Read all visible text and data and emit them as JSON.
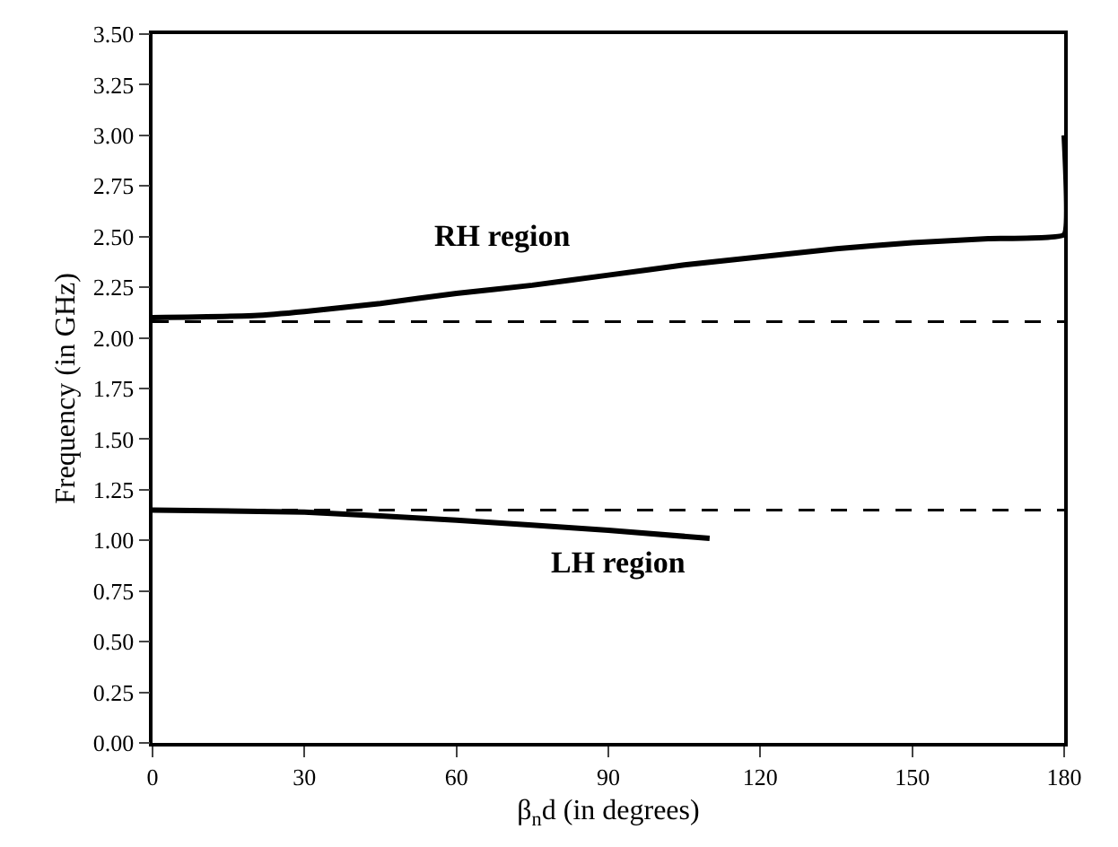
{
  "chart_data": {
    "type": "line",
    "xlabel": "β$_{n}$d (in degrees)",
    "ylabel": "Frequency (in GHz)",
    "xlim": [
      0,
      180
    ],
    "xticks": [
      0,
      30,
      60,
      90,
      120,
      150,
      180
    ],
    "ylim": [
      0,
      3.5
    ],
    "yticks": [
      {
        "value": 0,
        "label": "0.00"
      },
      {
        "value": 0.25,
        "label": "0.25"
      },
      {
        "value": 0.5,
        "label": "0.50"
      },
      {
        "value": 0.75,
        "label": "0.75"
      },
      {
        "value": 1,
        "label": "1.00"
      },
      {
        "value": 1.25,
        "label": "1.25"
      },
      {
        "value": 1.5,
        "label": "1.50"
      },
      {
        "value": 1.75,
        "label": "1.75"
      },
      {
        "value": 2,
        "label": "2.00"
      },
      {
        "value": 2.25,
        "label": "2.25"
      },
      {
        "value": 2.5,
        "label": "2.50"
      },
      {
        "value": 2.75,
        "label": "2.75"
      },
      {
        "value": 3,
        "label": "3.00"
      },
      {
        "value": 3.25,
        "label": "3.25"
      },
      {
        "value": 3.5,
        "label": "3.50"
      }
    ],
    "series": [
      {
        "color": "#000000",
        "x": [
          0,
          20,
          30,
          45,
          60,
          75,
          90,
          105,
          120,
          135,
          150,
          165,
          180,
          180
        ],
        "values": [
          2.1,
          2.11,
          2.13,
          2.17,
          2.22,
          2.26,
          2.31,
          2.36,
          2.4,
          2.44,
          2.47,
          2.49,
          2.51,
          3.0
        ]
      },
      {
        "color": "#000000",
        "x": [
          0,
          30,
          60,
          90,
          110
        ],
        "values": [
          1.15,
          1.14,
          1.1,
          1.05,
          1.01
        ]
      }
    ],
    "ref_lines": [
      {
        "axis": "y",
        "value": 2.08,
        "color": "#000000",
        "line_style": "dashed"
      },
      {
        "axis": "y",
        "value": 1.15,
        "color": "#000000",
        "line_style": "dashed"
      }
    ],
    "annotations": [
      "RH region",
      "LH region"
    ],
    "line_style": "solid"
  }
}
